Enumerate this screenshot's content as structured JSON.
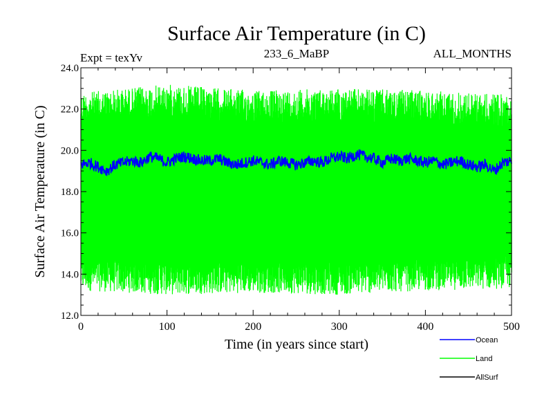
{
  "chart_data": {
    "type": "line",
    "title": "Surface Air Temperature (in C)",
    "experiment": "Expt = texYv",
    "run_id": "233_6_MaBP",
    "months": "ALL_MONTHS",
    "xlabel": "Time (in years since start)",
    "ylabel": "Surface Air Temperature (in C)",
    "xlim": [
      0,
      500
    ],
    "ylim": [
      12.0,
      24.0
    ],
    "x_ticks": [
      "0",
      "100",
      "200",
      "300",
      "400",
      "500"
    ],
    "y_ticks": [
      "12.0",
      "14.0",
      "16.0",
      "18.0",
      "20.0",
      "22.0",
      "24.0"
    ],
    "grid": false,
    "legend_position": "bottom-right",
    "series": [
      {
        "name": "Land",
        "color": "#00ff00",
        "envelope": {
          "x": [
            0,
            100,
            200,
            300,
            400,
            500
          ],
          "min": [
            13.2,
            13.0,
            13.1,
            13.0,
            13.2,
            13.3
          ],
          "max": [
            22.8,
            23.2,
            22.9,
            23.0,
            22.9,
            22.7
          ]
        }
      },
      {
        "name": "Ocean",
        "color": "#0000ff",
        "points": {
          "x": [
            0,
            10,
            20,
            30,
            40,
            50,
            60,
            70,
            80,
            90,
            100,
            110,
            120,
            130,
            140,
            150,
            160,
            170,
            180,
            190,
            200,
            210,
            220,
            230,
            240,
            250,
            260,
            270,
            280,
            290,
            300,
            310,
            320,
            330,
            340,
            350,
            360,
            370,
            380,
            390,
            400,
            410,
            420,
            430,
            440,
            450,
            460,
            470,
            480,
            490,
            500
          ],
          "y": [
            19.3,
            19.4,
            19.2,
            19.0,
            19.3,
            19.4,
            19.5,
            19.4,
            19.7,
            19.6,
            19.4,
            19.6,
            19.7,
            19.6,
            19.5,
            19.5,
            19.6,
            19.4,
            19.3,
            19.4,
            19.5,
            19.4,
            19.3,
            19.5,
            19.4,
            19.3,
            19.4,
            19.5,
            19.4,
            19.6,
            19.7,
            19.6,
            19.8,
            19.7,
            19.6,
            19.4,
            19.6,
            19.5,
            19.6,
            19.5,
            19.4,
            19.5,
            19.3,
            19.4,
            19.5,
            19.3,
            19.2,
            19.3,
            19.0,
            19.4,
            19.5
          ]
        }
      },
      {
        "name": "AllSurf",
        "color": "#000000"
      }
    ]
  }
}
